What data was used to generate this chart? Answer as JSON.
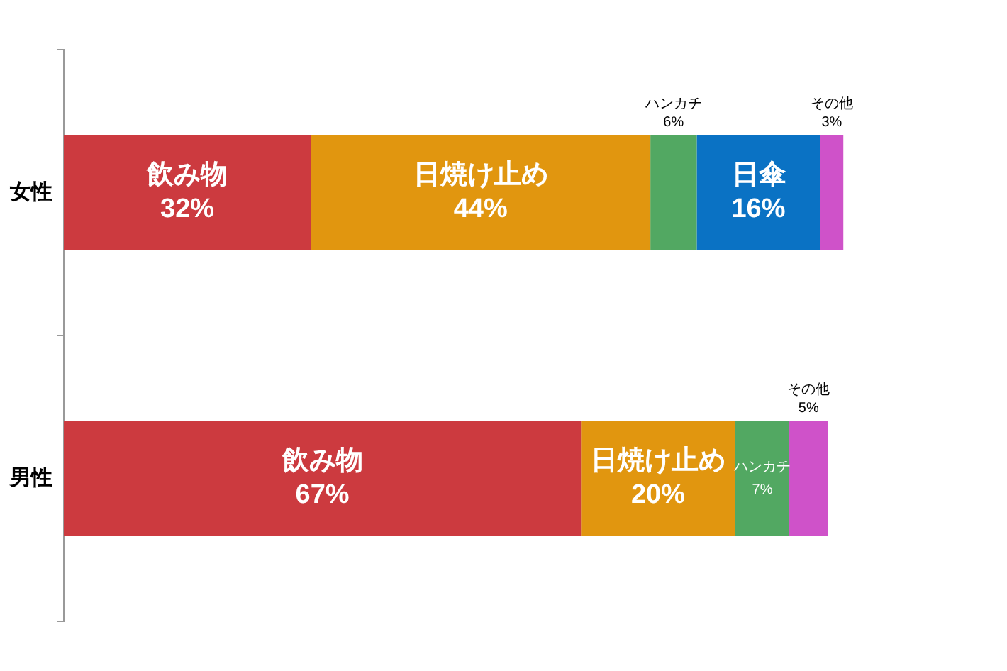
{
  "chart_data": {
    "type": "bar",
    "orientation": "horizontal",
    "stacked": true,
    "legend": false,
    "grid": false,
    "tick_labels": "y",
    "data_labels": true,
    "categories": [
      "女性",
      "男性"
    ],
    "series": [
      {
        "name": "飲み物",
        "color": "#cc3a3f",
        "values": [
          32,
          67
        ],
        "value_labels": [
          "32%",
          "67%"
        ]
      },
      {
        "name": "日焼け止め",
        "color": "#e1960f",
        "values": [
          44,
          20
        ],
        "value_labels": [
          "44%",
          "20%"
        ]
      },
      {
        "name": "ハンカチ",
        "color": "#52a862",
        "values": [
          6,
          7
        ],
        "value_labels": [
          "6%",
          "7%"
        ]
      },
      {
        "name": "日傘",
        "color": "#0a72c4",
        "values": [
          16,
          null
        ],
        "value_labels": [
          "16%",
          null
        ]
      },
      {
        "name": "その他",
        "color": "#cf52c9",
        "values": [
          3,
          5
        ],
        "value_labels": [
          "3%",
          "5%"
        ]
      }
    ]
  }
}
